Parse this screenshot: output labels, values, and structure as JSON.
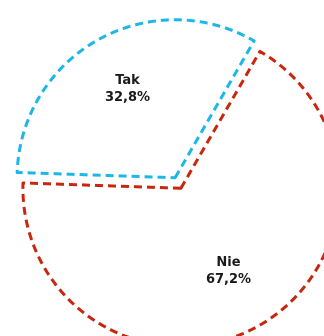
{
  "chart_data": {
    "type": "pie",
    "title": "",
    "slices": [
      {
        "label": "Tak",
        "value": 32.8,
        "value_label": "32,8%",
        "color": "#1bb7e6"
      },
      {
        "label": "Nie",
        "value": 67.2,
        "value_label": "67,2%",
        "color": "#c8270f"
      }
    ],
    "style": "dashed-outline, exploded",
    "legend": "none"
  }
}
